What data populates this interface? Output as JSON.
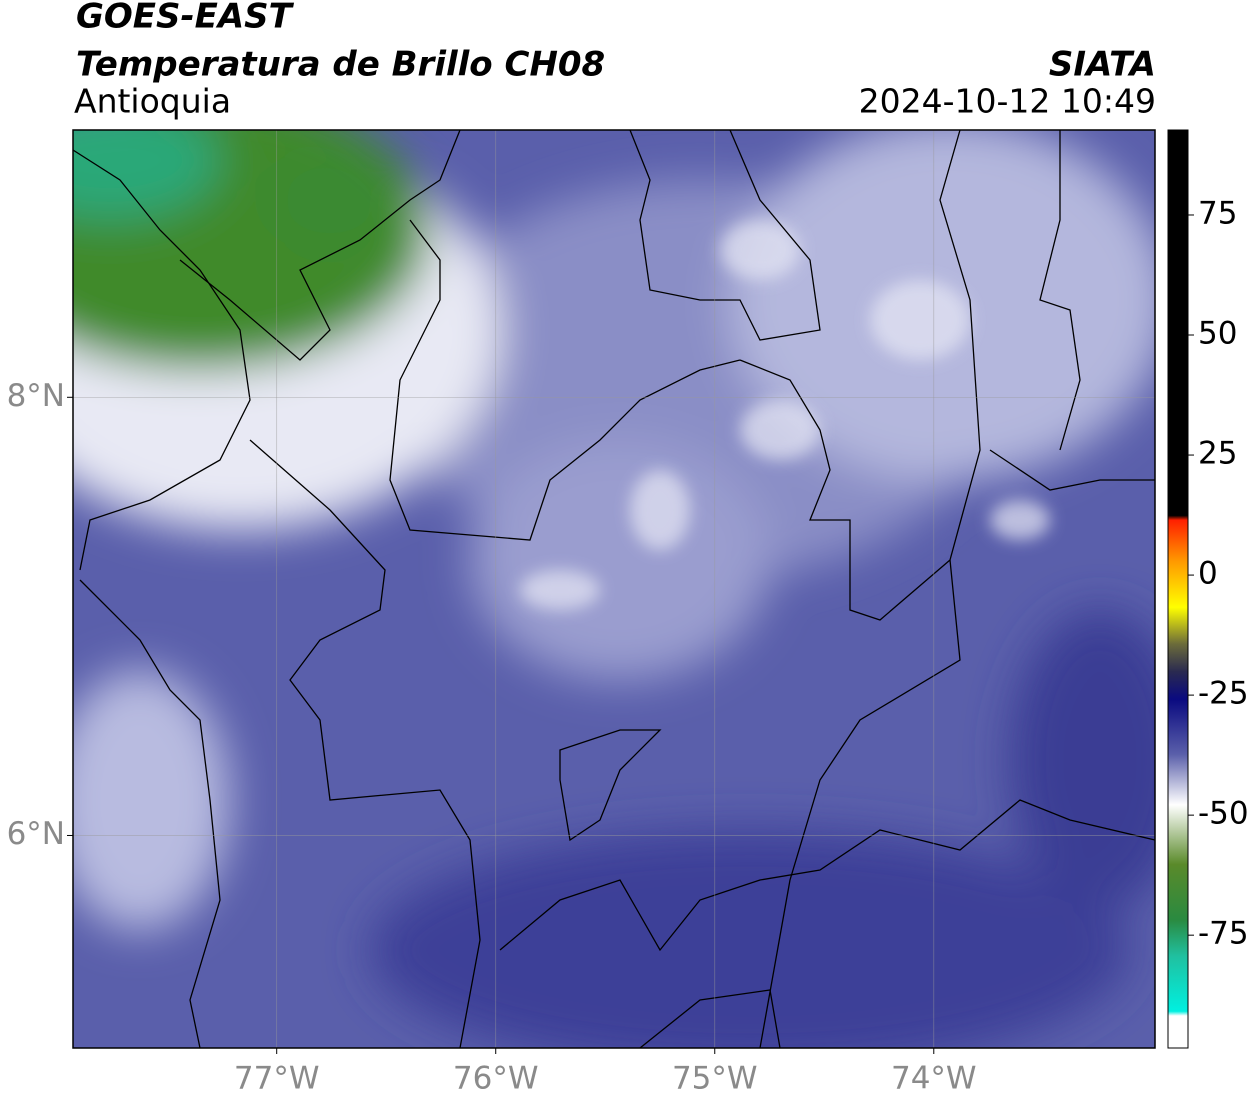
{
  "header": {
    "title": "GOES-EAST",
    "subtitle": "Temperatura de Brillo CH08",
    "region": "Antioquia",
    "source": "SIATA",
    "datetime": "2024-10-12 10:49"
  },
  "map": {
    "xlim": [
      -77.93,
      -72.99
    ],
    "ylim": [
      5.03,
      9.22
    ],
    "xticks": [
      {
        "value": -77,
        "label": "77°W"
      },
      {
        "value": -76,
        "label": "76°W"
      },
      {
        "value": -75,
        "label": "75°W"
      },
      {
        "value": -74,
        "label": "74°W"
      }
    ],
    "yticks": [
      {
        "value": 8,
        "label": "8°N"
      },
      {
        "value": 6,
        "label": "6°N"
      }
    ]
  },
  "colorbar": {
    "range": [
      -98.5,
      92.7
    ],
    "ticks": [
      75,
      50,
      25,
      0,
      -25,
      -50,
      -75
    ]
  }
}
